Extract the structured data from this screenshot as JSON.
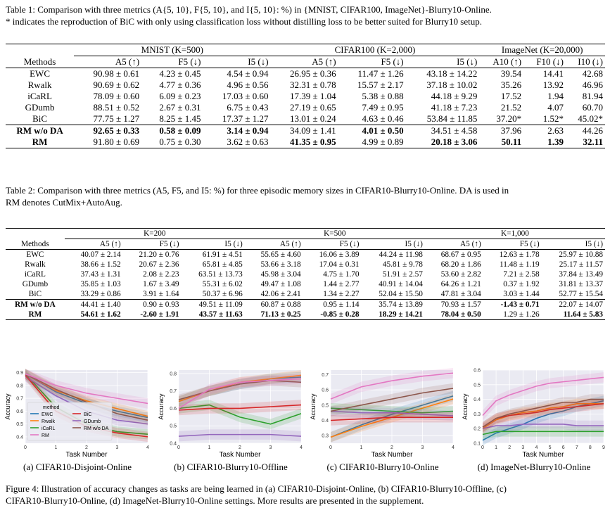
{
  "table1": {
    "caption_line1": "Table 1: Comparison with three metrics (A{5, 10}, F{5, 10}, and I{5, 10}: %) in {MNIST, CIFAR100, ImageNet}-Blurry10-Online.",
    "caption_line2": "* indicates the reproduction of BiC with only using classification loss without distilling loss to be better suited for Blurry10 setup.",
    "groups": [
      "MNIST (K=500)",
      "CIFAR100 (K=2,000)",
      "ImageNet (K=20,000)"
    ],
    "headers": [
      "Methods",
      "A5 (↑)",
      "F5 (↓)",
      "I5 (↓)",
      "A5 (↑)",
      "F5 (↓)",
      "I5 (↓)",
      "A10 (↑)",
      "F10 (↓)",
      "I10 (↓)"
    ],
    "rows": [
      [
        "EWC",
        "90.98 ± 0.61",
        "4.23 ± 0.45",
        "4.54 ± 0.94",
        "26.95 ± 0.36",
        "11.47 ± 1.26",
        "43.18 ± 14.22",
        "39.54",
        "14.41",
        "42.68"
      ],
      [
        "Rwalk",
        "90.69 ± 0.62",
        "4.77 ± 0.36",
        "4.96 ± 0.56",
        "32.31 ± 0.78",
        "15.57 ± 2.17",
        "37.18 ± 10.02",
        "35.26",
        "13.92",
        "46.96"
      ],
      [
        "iCaRL",
        "78.09 ± 0.60",
        "6.09 ± 0.23",
        "17.03 ± 0.60",
        "17.39 ± 1.04",
        "5.38 ± 0.88",
        "44.18 ± 9.29",
        "17.52",
        "1.94",
        "81.94"
      ],
      [
        "GDumb",
        "88.51 ± 0.52",
        "2.67 ± 0.31",
        "6.75 ± 0.43",
        "27.19 ± 0.65",
        "7.49 ± 0.95",
        "41.18 ± 7.23",
        "21.52",
        "4.07",
        "60.70"
      ],
      [
        "BiC",
        "77.75 ± 1.27",
        "8.25 ± 1.45",
        "17.37 ± 1.27",
        "13.01 ± 0.24",
        "4.63 ± 0.46",
        "53.84 ± 11.85",
        "37.20*",
        "1.52*",
        "45.02*"
      ],
      [
        "RM w/o DA",
        "92.65 ± 0.33",
        "0.58 ± 0.09",
        "3.14 ± 0.94",
        "34.09 ± 1.41",
        "4.01 ± 0.50",
        "34.51 ± 4.58",
        "37.96",
        "2.63",
        "44.26"
      ],
      [
        "RM",
        "91.80 ± 0.69",
        "0.75 ± 0.30",
        "3.62 ± 0.63",
        "41.35 ± 0.95",
        "4.99 ± 0.89",
        "20.18 ± 3.06",
        "50.11",
        "1.39",
        "32.11"
      ]
    ]
  },
  "table2": {
    "caption_line1": "Table 2: Comparison with three metrics (A5, F5, and I5: %) for three episodic memory sizes in CIFAR10-Blurry10-Online. DA is used in",
    "caption_line2": "RM denotes CutMix+AutoAug.",
    "groups": [
      "K=200",
      "K=500",
      "K=1,000"
    ],
    "headers": [
      "Methods",
      "A5 (↑)",
      "F5 (↓)",
      "I5 (↓)",
      "A5 (↑)",
      "F5 (↓)",
      "I5 (↓)",
      "A5 (↑)",
      "F5 (↓)",
      "I5 (↓)"
    ],
    "rows": [
      [
        "EWC",
        "40.07 ± 2.14",
        "21.20 ± 0.76",
        "61.91 ± 4.51",
        "55.65 ± 4.60",
        "16.06 ± 3.89",
        "44.24 ± 11.98",
        "68.67 ± 0.95",
        "12.63 ± 1.78",
        "25.97 ± 10.88"
      ],
      [
        "Rwalk",
        "38.66 ± 1.52",
        "20.67 ± 2.36",
        "65.81 ± 4.85",
        "53.66 ± 3.18",
        "17.04 ± 0.31",
        "45.81 ± 9.78",
        "68.20 ± 1.86",
        "11.48 ± 1.19",
        "25.17 ± 11.57"
      ],
      [
        "iCaRL",
        "37.43 ± 1.31",
        "2.08 ± 2.23",
        "63.51 ± 13.73",
        "45.98 ± 3.04",
        "4.75 ± 1.70",
        "51.91 ± 2.57",
        "53.60 ± 2.82",
        "7.21 ± 2.58",
        "37.84 ± 13.49"
      ],
      [
        "GDumb",
        "35.85 ± 1.03",
        "1.67 ± 3.49",
        "55.31 ± 6.02",
        "49.47 ± 1.08",
        "1.44 ± 2.77",
        "40.91 ± 14.04",
        "64.26 ± 1.21",
        "0.37 ± 1.92",
        "31.81 ± 13.37"
      ],
      [
        "BiC",
        "33.29 ± 0.86",
        "3.91 ± 1.64",
        "50.37 ± 6.96",
        "42.06 ± 2.41",
        "1.34 ± 2.27",
        "52.04 ± 15.50",
        "47.81 ± 3.04",
        "3.03 ± 1.44",
        "52.77 ± 15.54"
      ],
      [
        "RM w/o DA",
        "44.41 ± 1.40",
        "0.90 ± 0.93",
        "49.51 ± 11.09",
        "60.87 ± 0.88",
        "0.95 ± 1.14",
        "35.74 ± 13.89",
        "70.93 ± 1.57",
        "-1.43 ± 0.71",
        "22.07 ± 14.07"
      ],
      [
        "RM",
        "54.61 ± 1.62",
        "-2.60 ± 1.91",
        "43.57 ± 11.63",
        "71.13 ± 0.25",
        "-0.85 ± 0.28",
        "18.29 ± 14.21",
        "78.04 ± 0.50",
        "1.29 ± 1.26",
        "11.64 ± 5.83"
      ]
    ]
  },
  "figure": {
    "caption_line1": "Figure 4: Illustration of accuracy changes as tasks are being learned in (a) CIFAR10-Disjoint-Online, (b) CIFAR10-Blurry10-Offline, (c)",
    "caption_line2": "CIFAR10-Blurry10-Online, (d) ImageNet-Blurry10-Online settings. More results are presented in the supplement.",
    "subcaptions": [
      "(a) CIFAR10-Disjoint-Online",
      "(b) CIFAR10-Blurry10-Offline",
      "(c) CIFAR10-Blurry10-Online",
      "(d) ImageNet-Blurry10-Online"
    ],
    "xlabel": "Task Number",
    "ylabel": "Accuracy",
    "legend_title": "method",
    "legend_order": [
      "EWC",
      "BiC",
      "Rwalk",
      "GDumb",
      "iCaRL",
      "RM w/o DA",
      "RM"
    ]
  },
  "chart_data": [
    {
      "type": "line",
      "title": "(a) CIFAR10-Disjoint-Online",
      "xlabel": "Task Number",
      "ylabel": "Accuracy",
      "xlim": [
        0,
        4
      ],
      "ylim": [
        0.35,
        0.92
      ],
      "xticks": [
        0,
        1,
        2,
        3,
        4
      ],
      "yticks": [
        0.4,
        0.5,
        0.6,
        0.7,
        0.8,
        0.9
      ],
      "grid": true,
      "legend": "bottom-left",
      "x": [
        0,
        1,
        2,
        3,
        4
      ],
      "series": [
        {
          "name": "EWC",
          "color": "#1f77b4",
          "values": [
            0.89,
            0.75,
            0.66,
            0.6,
            0.55
          ]
        },
        {
          "name": "Rwalk",
          "color": "#ff7f0e",
          "values": [
            0.89,
            0.76,
            0.68,
            0.62,
            0.56
          ]
        },
        {
          "name": "iCaRL",
          "color": "#2ca02c",
          "values": [
            0.89,
            0.63,
            0.5,
            0.44,
            0.42
          ]
        },
        {
          "name": "GDumb",
          "color": "#9467bd",
          "values": [
            0.87,
            0.72,
            0.6,
            0.53,
            0.5
          ]
        },
        {
          "name": "BiC",
          "color": "#d62728",
          "values": [
            0.88,
            0.6,
            0.48,
            0.43,
            0.4
          ]
        },
        {
          "name": "RM w/o DA",
          "color": "#8c564b",
          "values": [
            0.89,
            0.77,
            0.67,
            0.58,
            0.53
          ]
        },
        {
          "name": "RM",
          "color": "#e377c2",
          "values": [
            0.89,
            0.8,
            0.74,
            0.7,
            0.66
          ]
        }
      ]
    },
    {
      "type": "line",
      "title": "(b) CIFAR10-Blurry10-Offline",
      "xlabel": "Task Number",
      "ylabel": "Accuracy",
      "xlim": [
        0,
        4
      ],
      "ylim": [
        0.4,
        0.82
      ],
      "xticks": [
        0,
        1,
        2,
        3,
        4
      ],
      "yticks": [
        0.4,
        0.5,
        0.6,
        0.7,
        0.8
      ],
      "grid": true,
      "x": [
        0,
        1,
        2,
        3,
        4
      ],
      "series": [
        {
          "name": "EWC",
          "color": "#1f77b4",
          "values": [
            0.64,
            0.7,
            0.74,
            0.77,
            0.78
          ]
        },
        {
          "name": "Rwalk",
          "color": "#ff7f0e",
          "values": [
            0.64,
            0.7,
            0.75,
            0.77,
            0.79
          ]
        },
        {
          "name": "iCaRL",
          "color": "#2ca02c",
          "values": [
            0.6,
            0.62,
            0.55,
            0.51,
            0.57
          ]
        },
        {
          "name": "GDumb",
          "color": "#9467bd",
          "values": [
            0.44,
            0.45,
            0.45,
            0.45,
            0.44
          ]
        },
        {
          "name": "BiC",
          "color": "#d62728",
          "values": [
            0.59,
            0.6,
            0.6,
            0.61,
            0.62
          ]
        },
        {
          "name": "RM w/o DA",
          "color": "#8c564b",
          "values": [
            0.65,
            0.7,
            0.74,
            0.76,
            0.75
          ]
        },
        {
          "name": "RM",
          "color": "#e377c2",
          "values": [
            0.6,
            0.71,
            0.75,
            0.76,
            0.77
          ]
        }
      ]
    },
    {
      "type": "line",
      "title": "(c) CIFAR10-Blurry10-Online",
      "xlabel": "Task Number",
      "ylabel": "Accuracy",
      "xlim": [
        0,
        4
      ],
      "ylim": [
        0.25,
        0.73
      ],
      "xticks": [
        0,
        1,
        2,
        3,
        4
      ],
      "yticks": [
        0.3,
        0.4,
        0.5,
        0.6,
        0.7
      ],
      "grid": true,
      "x": [
        0,
        1,
        2,
        3,
        4
      ],
      "series": [
        {
          "name": "EWC",
          "color": "#1f77b4",
          "values": [
            0.29,
            0.37,
            0.44,
            0.5,
            0.56
          ]
        },
        {
          "name": "Rwalk",
          "color": "#ff7f0e",
          "values": [
            0.29,
            0.36,
            0.42,
            0.48,
            0.54
          ]
        },
        {
          "name": "iCaRL",
          "color": "#2ca02c",
          "values": [
            0.48,
            0.47,
            0.46,
            0.45,
            0.46
          ]
        },
        {
          "name": "GDumb",
          "color": "#9467bd",
          "values": [
            0.46,
            0.45,
            0.45,
            0.44,
            0.43
          ]
        },
        {
          "name": "BiC",
          "color": "#d62728",
          "values": [
            0.4,
            0.41,
            0.42,
            0.42,
            0.42
          ]
        },
        {
          "name": "RM w/o DA",
          "color": "#8c564b",
          "values": [
            0.46,
            0.5,
            0.54,
            0.58,
            0.61
          ]
        },
        {
          "name": "RM",
          "color": "#e377c2",
          "values": [
            0.54,
            0.62,
            0.66,
            0.69,
            0.71
          ]
        }
      ]
    },
    {
      "type": "line",
      "title": "(d) ImageNet-Blurry10-Online",
      "xlabel": "Task Number",
      "ylabel": "Accuracy",
      "xlim": [
        0,
        9
      ],
      "ylim": [
        0.1,
        0.6
      ],
      "xticks": [
        0,
        1,
        2,
        3,
        4,
        5,
        6,
        7,
        8,
        9
      ],
      "yticks": [
        0.1,
        0.2,
        0.3,
        0.4,
        0.5,
        0.6
      ],
      "grid": true,
      "x": [
        0,
        1,
        2,
        3,
        4,
        5,
        6,
        7,
        8,
        9
      ],
      "series": [
        {
          "name": "EWC",
          "color": "#1f77b4",
          "values": [
            0.12,
            0.17,
            0.2,
            0.23,
            0.27,
            0.3,
            0.32,
            0.35,
            0.37,
            0.39
          ]
        },
        {
          "name": "Rwalk",
          "color": "#ff7f0e",
          "values": [
            0.2,
            0.26,
            0.29,
            0.31,
            0.32,
            0.34,
            0.35,
            0.37,
            0.37,
            0.37
          ]
        },
        {
          "name": "iCaRL",
          "color": "#2ca02c",
          "values": [
            0.16,
            0.18,
            0.18,
            0.18,
            0.18,
            0.18,
            0.18,
            0.18,
            0.18,
            0.18
          ]
        },
        {
          "name": "GDumb",
          "color": "#9467bd",
          "values": [
            0.2,
            0.22,
            0.22,
            0.23,
            0.23,
            0.23,
            0.23,
            0.22,
            0.22,
            0.22
          ]
        },
        {
          "name": "BiC",
          "color": "#d62728",
          "values": [
            0.21,
            0.27,
            0.29,
            0.3,
            0.31,
            0.33,
            0.34,
            0.35,
            0.36,
            0.37
          ]
        },
        {
          "name": "RM w/o DA",
          "color": "#8c564b",
          "values": [
            0.21,
            0.27,
            0.3,
            0.32,
            0.34,
            0.36,
            0.38,
            0.38,
            0.4,
            0.4
          ]
        },
        {
          "name": "RM",
          "color": "#e377c2",
          "values": [
            0.29,
            0.39,
            0.43,
            0.46,
            0.49,
            0.51,
            0.52,
            0.53,
            0.54,
            0.55
          ]
        }
      ]
    }
  ]
}
